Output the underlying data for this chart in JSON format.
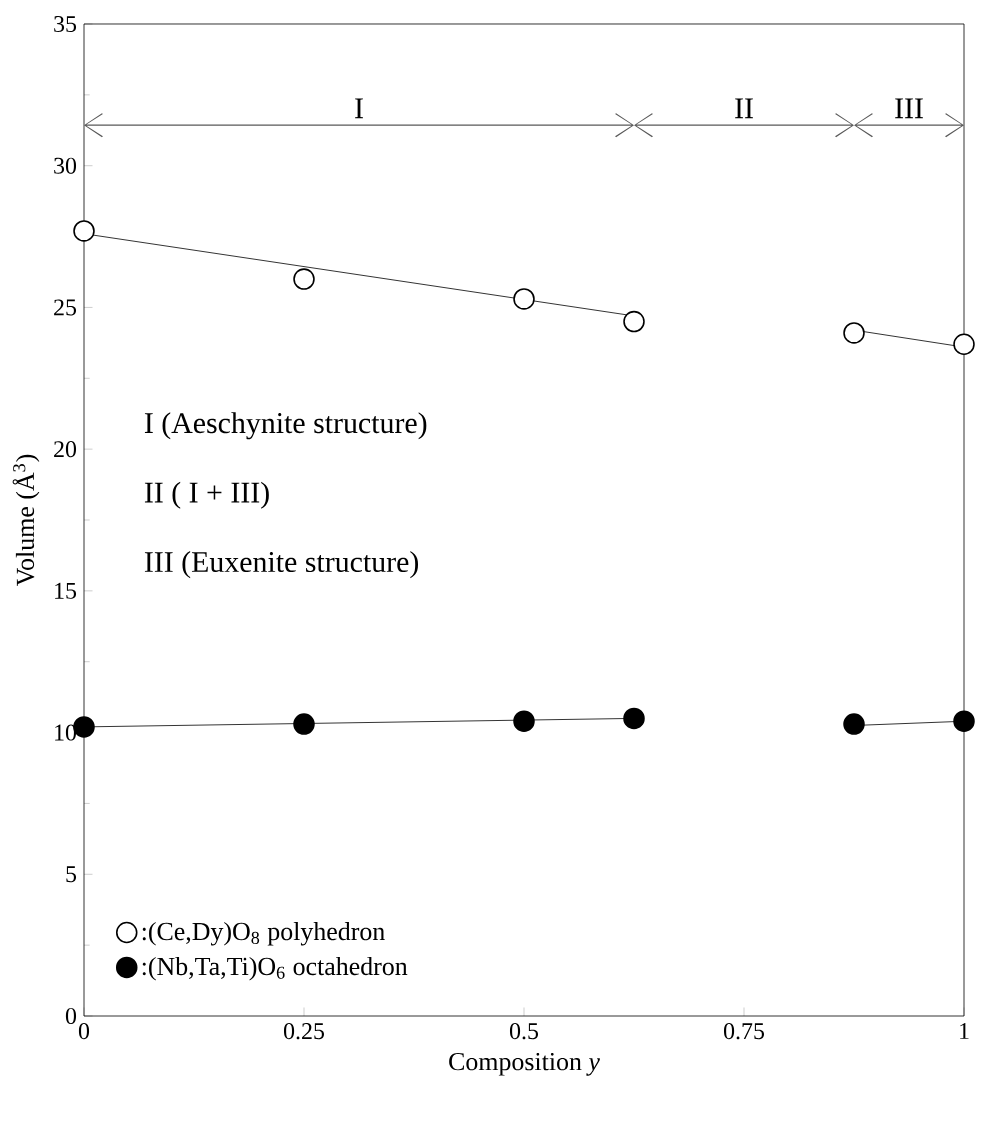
{
  "chart_data": {
    "type": "scatter",
    "xlabel": "Composition *y*",
    "ylabel": "Volume (Å$^{3}$)",
    "xlim": [
      0,
      1
    ],
    "ylim": [
      0,
      35
    ],
    "xticks": [
      0,
      0.25,
      0.5,
      0.75,
      1
    ],
    "yticks": [
      0,
      5,
      10,
      15,
      20,
      25,
      30,
      35
    ],
    "x": [
      0,
      0.25,
      0.5,
      0.625,
      0.875,
      1
    ],
    "series": [
      {
        "name": ":(Ce,Dy)O$_{8}$ polyhedron",
        "color": "#ffffff",
        "marker": "circle",
        "values": [
          27.7,
          26.0,
          25.3,
          24.5,
          24.1,
          23.7
        ]
      },
      {
        "name": ":(Nb,Ta,Ti)O$_{6}$ octahedron",
        "color": "#000000",
        "marker": "circle",
        "values": [
          10.2,
          10.3,
          10.4,
          10.5,
          10.3,
          10.4
        ]
      },
      {
        "type": "line",
        "color": "#000000",
        "marker": "none",
        "x": [
          0,
          0.625,
          0.75,
          0.875,
          1
        ],
        "values": [
          27.6,
          24.7,
          null,
          24.2,
          23.6
        ]
      },
      {
        "type": "line",
        "color": "#000000",
        "marker": "none",
        "x": [
          0,
          0.625,
          0.75,
          0.875,
          1
        ],
        "values": [
          10.2,
          10.5,
          null,
          10.25,
          10.4
        ]
      }
    ],
    "annotations": [
      "I",
      "II",
      "III",
      "I (Aeschynite structure)",
      "II ( I + III)",
      "III (Euxenite structure)"
    ],
    "legend": "bottom left",
    "grid": false
  }
}
